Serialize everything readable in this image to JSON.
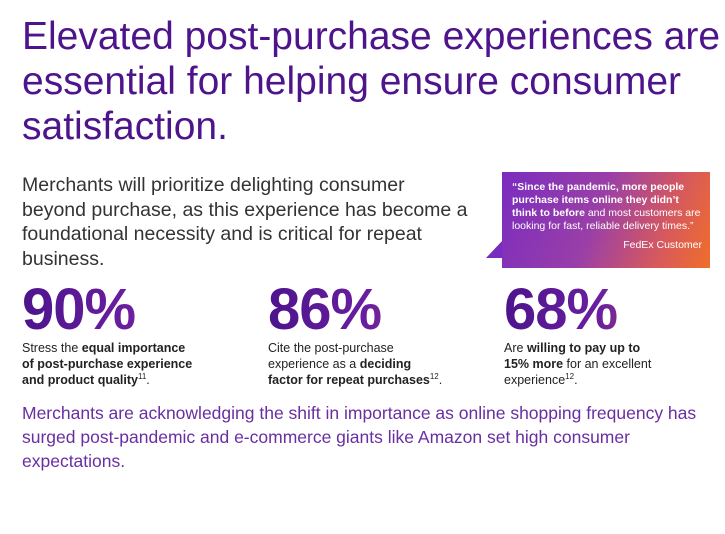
{
  "headline": "Elevated post-purchase experiences are essential for helping ensure consumer satisfaction.",
  "intro": "Merchants will prioritize delighting consumer beyond purchase, as this experience has become a foundational necessity and is critical for repeat business.",
  "quote": {
    "open_mark": "“",
    "bold_part": "Since the pandemic, more people purchase items online they didn’t think to before",
    "normal_part": " and most customers are looking for fast, reliable delivery times.",
    "close_mark": "”",
    "source": "FedEx Customer"
  },
  "stats": [
    {
      "value": "90%",
      "caption": {
        "line1_pre": "Stress the ",
        "line1_bold": "equal importance",
        "line2_bold": "of post-purchase experience",
        "line3_bold": "and product quality",
        "line3_ref": "11",
        "line3_post": "."
      }
    },
    {
      "value": "86%",
      "caption": {
        "line1": "Cite the post-purchase",
        "line2_pre": "experience as a ",
        "line2_bold": "deciding",
        "line3_bold": "factor for repeat purchases",
        "line3_ref": "12",
        "line3_post": "."
      }
    },
    {
      "value": "68%",
      "caption": {
        "line1_pre": "Are ",
        "line1_bold": "willing to pay up to",
        "line2_bold": "15% more",
        "line2_post": " for an excellent",
        "line3": "experience",
        "line3_ref": "12",
        "line3_post": "."
      }
    }
  ],
  "footer": "Merchants are acknowledging the shift in importance as online shopping frequency has surged post-pandemic and e-commerce giants like Amazon set high consumer expectations.",
  "colors": {
    "purple": "#4d148c",
    "orange": "#ff6200",
    "footer_text": "#6a2ea3"
  }
}
